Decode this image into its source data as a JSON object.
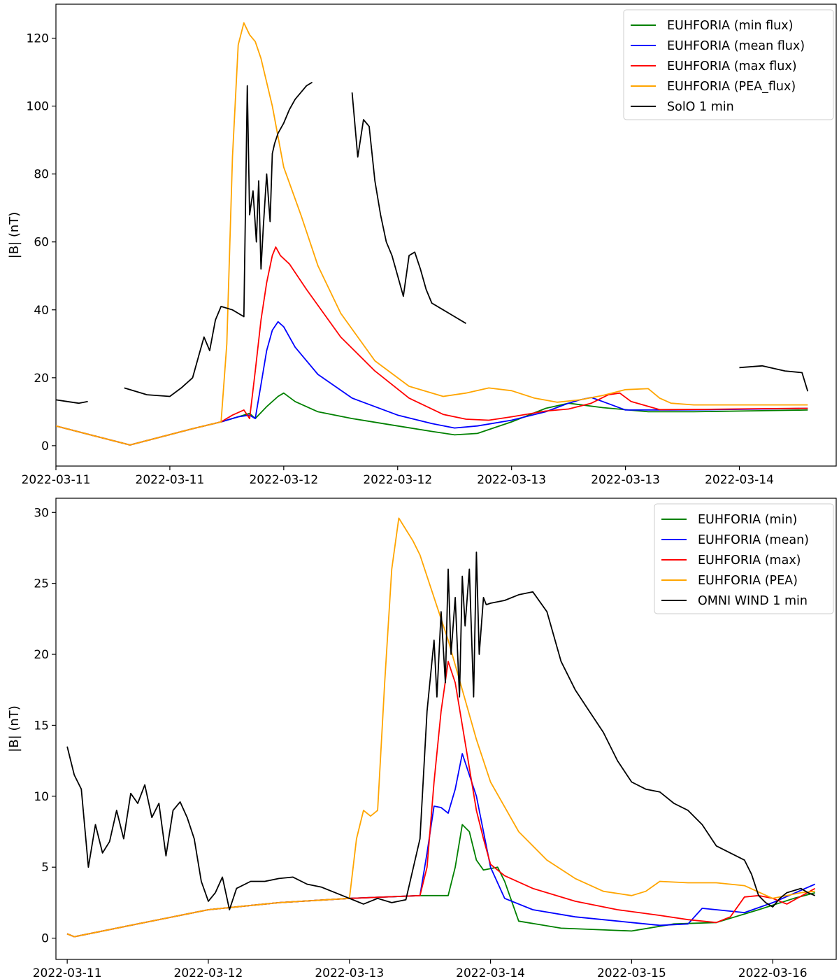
{
  "chart_data": [
    {
      "type": "line",
      "ylabel": "|B| (nT)",
      "xlabel": "",
      "xlim": [
        0,
        6.85
      ],
      "ylim": [
        -6,
        130
      ],
      "x_tick_positions": [
        0,
        1,
        2,
        3,
        4,
        5,
        6
      ],
      "x_tick_labels": [
        "2022-03-11",
        "2022-03-11",
        "2022-03-12",
        "2022-03-12",
        "2022-03-13",
        "2022-03-13",
        "2022-03-14"
      ],
      "y_tick_values": [
        0,
        20,
        40,
        60,
        80,
        100,
        120
      ],
      "y_tick_labels": [
        "0",
        "20",
        "40",
        "60",
        "80",
        "100",
        "120"
      ],
      "legend_position": "top-right",
      "series": [
        {
          "name": "EUHFORIA (min flux)",
          "color": "#008000",
          "x": [
            0,
            0.65,
            1.2,
            1.45,
            1.6,
            1.7,
            1.75,
            1.85,
            1.95,
            2.0,
            2.1,
            2.3,
            2.6,
            3.0,
            3.3,
            3.5,
            3.7,
            4.0,
            4.3,
            4.5,
            4.8,
            5.2,
            5.6,
            6.0,
            6.4,
            6.6
          ],
          "y": [
            5.8,
            0.2,
            5,
            7,
            8.5,
            9.5,
            8,
            11.5,
            14.5,
            15.5,
            13,
            10,
            8,
            5.8,
            4.2,
            3.2,
            3.6,
            7,
            11,
            12.5,
            11.2,
            10,
            10,
            10.2,
            10.4,
            10.5
          ]
        },
        {
          "name": "EUHFORIA (mean flux)",
          "color": "#0000ff",
          "x": [
            0,
            0.65,
            1.2,
            1.45,
            1.6,
            1.7,
            1.75,
            1.8,
            1.85,
            1.9,
            1.95,
            2.0,
            2.1,
            2.3,
            2.6,
            3.0,
            3.3,
            3.5,
            3.7,
            4.0,
            4.3,
            4.5,
            4.6,
            4.7,
            4.8,
            5.0,
            5.4,
            5.8,
            6.2,
            6.6
          ],
          "y": [
            5.8,
            0.2,
            5,
            7,
            8.5,
            9,
            8,
            18,
            28,
            34,
            36.5,
            35,
            29,
            21,
            14,
            9,
            6.5,
            5.2,
            5.8,
            7.5,
            10,
            12.5,
            13.5,
            14.2,
            13,
            10.5,
            10.5,
            10.6,
            10.8,
            11
          ]
        },
        {
          "name": "EUHFORIA (max flux)",
          "color": "#ff0000",
          "x": [
            0,
            0.65,
            1.2,
            1.45,
            1.55,
            1.65,
            1.7,
            1.75,
            1.8,
            1.85,
            1.9,
            1.93,
            1.97,
            2.05,
            2.2,
            2.5,
            2.8,
            3.1,
            3.4,
            3.6,
            3.8,
            4.0,
            4.3,
            4.5,
            4.7,
            4.85,
            4.95,
            5.05,
            5.3,
            5.7,
            6.2,
            6.6
          ],
          "y": [
            5.8,
            0.2,
            5,
            7,
            9,
            10.5,
            8,
            22,
            37,
            48,
            56,
            58.5,
            56,
            53.5,
            46,
            32,
            22,
            14,
            9.2,
            7.8,
            7.5,
            8.5,
            10.2,
            10.8,
            12.5,
            15,
            15.5,
            13,
            10.6,
            10.7,
            10.9,
            11
          ]
        },
        {
          "name": "EUHFORIA (PEA_flux)",
          "color": "#ffa500",
          "x": [
            0,
            0.65,
            1.2,
            1.45,
            1.5,
            1.55,
            1.6,
            1.65,
            1.7,
            1.75,
            1.8,
            1.9,
            2.0,
            2.15,
            2.3,
            2.5,
            2.8,
            3.1,
            3.4,
            3.6,
            3.8,
            4.0,
            4.2,
            4.4,
            4.6,
            4.8,
            5.0,
            5.2,
            5.3,
            5.4,
            5.6,
            6.0,
            6.6
          ],
          "y": [
            5.8,
            0.2,
            5,
            7,
            30,
            85,
            118,
            124.5,
            121,
            119,
            114,
            100,
            82,
            68,
            53,
            39,
            25,
            17.5,
            14.5,
            15.5,
            17,
            16.2,
            14,
            12.8,
            13.5,
            14.8,
            16.5,
            16.8,
            14,
            12.5,
            12,
            12,
            12
          ]
        },
        {
          "name": "SolO 1 min",
          "color": "#000000",
          "x_segments": [
            [
              0,
              0.1,
              0.2,
              0.28
            ],
            [
              0.6,
              0.8,
              1.0,
              1.1,
              1.2,
              1.25,
              1.3,
              1.35,
              1.4,
              1.45,
              1.55,
              1.65,
              1.68,
              1.7,
              1.73,
              1.76,
              1.78,
              1.8,
              1.82,
              1.85,
              1.88,
              1.9,
              1.92,
              1.95,
              2.0,
              2.05,
              2.1,
              2.15,
              2.2,
              2.25
            ],
            [
              2.6,
              2.65,
              2.7,
              2.75,
              2.8,
              2.85,
              2.9,
              2.95,
              3.0,
              3.05,
              3.1,
              3.15,
              3.2,
              3.25,
              3.3,
              3.4,
              3.5,
              3.6
            ],
            [
              6.0,
              6.2,
              6.4,
              6.55,
              6.6
            ]
          ],
          "y_segments": [
            [
              13.5,
              13,
              12.5,
              13
            ],
            [
              17,
              15,
              14.5,
              17,
              20,
              26,
              32,
              28,
              37,
              41,
              40,
              38,
              106,
              68,
              75,
              60,
              78,
              52,
              64,
              80,
              66,
              86,
              89,
              92,
              95,
              99,
              102,
              104,
              106,
              107
            ],
            [
              104,
              85,
              96,
              94,
              78,
              68,
              60,
              56,
              50,
              44,
              56,
              57,
              52,
              46,
              42,
              40,
              38,
              36
            ],
            [
              23,
              23.5,
              22,
              21.5,
              16
            ]
          ]
        }
      ]
    },
    {
      "type": "line",
      "ylabel": "|B| (nT)",
      "xlabel": "",
      "xlim": [
        -0.08,
        5.45
      ],
      "ylim": [
        -1.5,
        31
      ],
      "x_tick_positions": [
        0,
        1,
        2,
        3,
        4,
        5
      ],
      "x_tick_labels": [
        "2022-03-11",
        "2022-03-12",
        "2022-03-13",
        "2022-03-14",
        "2022-03-15",
        "2022-03-16"
      ],
      "y_tick_values": [
        0,
        5,
        10,
        15,
        20,
        25,
        30
      ],
      "y_tick_labels": [
        "0",
        "5",
        "10",
        "15",
        "20",
        "25",
        "30"
      ],
      "legend_position": "top-right",
      "series": [
        {
          "name": "EUHFORIA (min)",
          "color": "#008000",
          "x": [
            0,
            0.05,
            0.5,
            1.0,
            1.5,
            2.0,
            2.5,
            2.7,
            2.75,
            2.8,
            2.85,
            2.9,
            2.95,
            3.0,
            3.05,
            3.1,
            3.2,
            3.5,
            4.0,
            4.3,
            4.6,
            4.9,
            5.15,
            5.3
          ],
          "y": [
            0.3,
            0.1,
            1,
            2,
            2.5,
            2.8,
            3,
            3,
            5,
            8,
            7.5,
            5.5,
            4.8,
            4.9,
            5,
            4,
            1.2,
            0.7,
            0.5,
            1,
            1.1,
            2,
            2.8,
            3.2
          ]
        },
        {
          "name": "EUHFORIA (mean)",
          "color": "#0000ff",
          "x": [
            0,
            0.05,
            0.5,
            1.0,
            1.5,
            2.0,
            2.5,
            2.55,
            2.6,
            2.65,
            2.7,
            2.75,
            2.8,
            2.85,
            2.9,
            2.95,
            3.0,
            3.1,
            3.3,
            3.6,
            4.0,
            4.2,
            4.4,
            4.5,
            4.6,
            4.8,
            5.0,
            5.3
          ],
          "y": [
            0.3,
            0.1,
            1,
            2,
            2.5,
            2.8,
            3,
            6,
            9.3,
            9.2,
            8.8,
            10.5,
            13,
            11.5,
            10,
            7.5,
            5,
            2.8,
            2,
            1.5,
            1.1,
            0.9,
            1,
            2.1,
            2,
            1.8,
            2.5,
            3.8
          ]
        },
        {
          "name": "EUHFORIA (max)",
          "color": "#ff0000",
          "x": [
            0,
            0.05,
            0.5,
            1.0,
            1.5,
            2.0,
            2.5,
            2.55,
            2.6,
            2.65,
            2.7,
            2.75,
            2.8,
            2.85,
            2.9,
            2.95,
            3.0,
            3.05,
            3.1,
            3.3,
            3.6,
            3.9,
            4.2,
            4.4,
            4.6,
            4.7,
            4.8,
            4.9,
            5.0,
            5.1,
            5.3
          ],
          "y": [
            0.3,
            0.1,
            1,
            2,
            2.5,
            2.8,
            3,
            5,
            11,
            16,
            19.5,
            18,
            15,
            12,
            9,
            7,
            5.2,
            4.8,
            4.4,
            3.5,
            2.6,
            2,
            1.6,
            1.3,
            1.1,
            1.5,
            2.9,
            3,
            2.8,
            2.4,
            3.5
          ]
        },
        {
          "name": "EUHFORIA (PEA)",
          "color": "#ffa500",
          "x": [
            0,
            0.05,
            0.5,
            1.0,
            1.5,
            2.0,
            2.05,
            2.1,
            2.15,
            2.2,
            2.25,
            2.3,
            2.35,
            2.4,
            2.45,
            2.5,
            2.6,
            2.7,
            2.8,
            2.9,
            3.0,
            3.2,
            3.4,
            3.6,
            3.8,
            4.0,
            4.1,
            4.2,
            4.4,
            4.6,
            4.8,
            5.0,
            5.2,
            5.3
          ],
          "y": [
            0.3,
            0.1,
            1,
            2,
            2.5,
            2.8,
            7,
            9,
            8.6,
            9,
            18,
            26,
            29.6,
            28.8,
            28,
            27,
            24,
            21,
            17.5,
            14,
            11,
            7.5,
            5.5,
            4.2,
            3.3,
            3,
            3.3,
            4,
            3.9,
            3.9,
            3.7,
            2.8,
            3.2,
            3.3
          ]
        },
        {
          "name": "OMNI WIND 1 min",
          "color": "#000000",
          "x": [
            0,
            0.05,
            0.1,
            0.15,
            0.2,
            0.25,
            0.3,
            0.35,
            0.4,
            0.45,
            0.5,
            0.55,
            0.6,
            0.65,
            0.7,
            0.75,
            0.8,
            0.85,
            0.9,
            0.95,
            1.0,
            1.05,
            1.1,
            1.15,
            1.2,
            1.3,
            1.4,
            1.5,
            1.6,
            1.7,
            1.8,
            1.9,
            2.0,
            2.1,
            2.2,
            2.3,
            2.4,
            2.5,
            2.55,
            2.6,
            2.62,
            2.65,
            2.68,
            2.7,
            2.72,
            2.75,
            2.78,
            2.8,
            2.82,
            2.85,
            2.88,
            2.9,
            2.92,
            2.95,
            2.97,
            3.0,
            3.1,
            3.2,
            3.3,
            3.4,
            3.5,
            3.6,
            3.7,
            3.8,
            3.9,
            4.0,
            4.1,
            4.2,
            4.3,
            4.4,
            4.5,
            4.6,
            4.7,
            4.8,
            4.85,
            4.9,
            4.95,
            5.0,
            5.05,
            5.1,
            5.2,
            5.25,
            5.3
          ],
          "y": [
            13.5,
            11.5,
            10.5,
            5,
            8,
            6,
            6.8,
            9,
            7,
            10.2,
            9.5,
            10.8,
            8.5,
            9.5,
            5.8,
            9,
            9.6,
            8.5,
            7,
            4,
            2.6,
            3.2,
            4.3,
            2,
            3.5,
            4,
            4,
            4.2,
            4.3,
            3.8,
            3.6,
            3.2,
            2.8,
            2.4,
            2.8,
            2.5,
            2.7,
            7,
            16,
            21,
            17,
            23,
            18,
            26,
            20,
            24,
            17,
            25.5,
            22,
            26,
            17,
            27.2,
            20,
            24,
            23.5,
            23.6,
            23.8,
            24.2,
            24.4,
            23,
            19.5,
            17.5,
            16,
            14.5,
            12.5,
            11,
            10.5,
            10.3,
            9.5,
            9,
            8,
            6.5,
            6,
            5.5,
            4.5,
            3,
            2.5,
            2.2,
            2.8,
            3.2,
            3.5,
            3.2,
            3
          ]
        }
      ]
    }
  ]
}
